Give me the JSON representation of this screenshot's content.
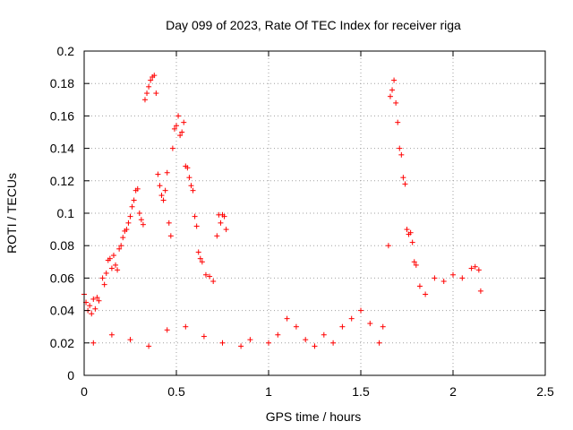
{
  "chart_data": {
    "type": "scatter",
    "title": "Day 099 of 2023, Rate Of TEC Index for receiver riga",
    "xlabel": "GPS time / hours",
    "ylabel": "ROTI / TECUs",
    "xlim": [
      0,
      2.5
    ],
    "ylim": [
      0,
      0.2
    ],
    "x_ticks": [
      "0",
      "0.5",
      "1",
      "1.5",
      "2",
      "2.5"
    ],
    "y_ticks": [
      "0",
      "0.02",
      "0.04",
      "0.06",
      "0.08",
      "0.1",
      "0.12",
      "0.14",
      "0.16",
      "0.18",
      "0.2"
    ],
    "grid": true,
    "marker": "+",
    "color": "#ff0000",
    "point_count_note": "",
    "series": [
      {
        "points": [
          [
            0.0,
            0.05
          ],
          [
            0.01,
            0.045
          ],
          [
            0.02,
            0.04
          ],
          [
            0.03,
            0.043
          ],
          [
            0.04,
            0.038
          ],
          [
            0.05,
            0.047
          ],
          [
            0.06,
            0.041
          ],
          [
            0.07,
            0.048
          ],
          [
            0.08,
            0.046
          ],
          [
            0.1,
            0.06
          ],
          [
            0.11,
            0.056
          ],
          [
            0.12,
            0.063
          ],
          [
            0.13,
            0.071
          ],
          [
            0.14,
            0.072
          ],
          [
            0.15,
            0.066
          ],
          [
            0.16,
            0.074
          ],
          [
            0.17,
            0.068
          ],
          [
            0.18,
            0.065
          ],
          [
            0.19,
            0.078
          ],
          [
            0.2,
            0.08
          ],
          [
            0.21,
            0.085
          ],
          [
            0.22,
            0.089
          ],
          [
            0.23,
            0.09
          ],
          [
            0.24,
            0.094
          ],
          [
            0.25,
            0.098
          ],
          [
            0.26,
            0.104
          ],
          [
            0.27,
            0.108
          ],
          [
            0.28,
            0.114
          ],
          [
            0.29,
            0.115
          ],
          [
            0.3,
            0.1
          ],
          [
            0.31,
            0.096
          ],
          [
            0.32,
            0.093
          ],
          [
            0.33,
            0.17
          ],
          [
            0.34,
            0.174
          ],
          [
            0.35,
            0.178
          ],
          [
            0.36,
            0.182
          ],
          [
            0.37,
            0.184
          ],
          [
            0.38,
            0.185
          ],
          [
            0.39,
            0.174
          ],
          [
            0.4,
            0.124
          ],
          [
            0.41,
            0.117
          ],
          [
            0.42,
            0.111
          ],
          [
            0.43,
            0.108
          ],
          [
            0.44,
            0.114
          ],
          [
            0.45,
            0.125
          ],
          [
            0.46,
            0.094
          ],
          [
            0.47,
            0.086
          ],
          [
            0.48,
            0.14
          ],
          [
            0.49,
            0.152
          ],
          [
            0.5,
            0.154
          ],
          [
            0.51,
            0.16
          ],
          [
            0.52,
            0.148
          ],
          [
            0.53,
            0.15
          ],
          [
            0.54,
            0.156
          ],
          [
            0.55,
            0.129
          ],
          [
            0.56,
            0.128
          ],
          [
            0.57,
            0.122
          ],
          [
            0.58,
            0.117
          ],
          [
            0.59,
            0.114
          ],
          [
            0.6,
            0.098
          ],
          [
            0.61,
            0.092
          ],
          [
            0.62,
            0.076
          ],
          [
            0.63,
            0.072
          ],
          [
            0.64,
            0.07
          ],
          [
            0.66,
            0.062
          ],
          [
            0.68,
            0.061
          ],
          [
            0.7,
            0.058
          ],
          [
            0.72,
            0.086
          ],
          [
            0.73,
            0.099
          ],
          [
            0.74,
            0.094
          ],
          [
            0.75,
            0.099
          ],
          [
            0.76,
            0.098
          ],
          [
            0.77,
            0.09
          ],
          [
            0.05,
            0.02
          ],
          [
            0.15,
            0.025
          ],
          [
            0.25,
            0.022
          ],
          [
            0.35,
            0.018
          ],
          [
            0.45,
            0.028
          ],
          [
            0.55,
            0.03
          ],
          [
            0.65,
            0.024
          ],
          [
            0.75,
            0.02
          ],
          [
            0.85,
            0.018
          ],
          [
            0.9,
            0.022
          ],
          [
            1.0,
            0.02
          ],
          [
            1.05,
            0.025
          ],
          [
            1.1,
            0.035
          ],
          [
            1.15,
            0.03
          ],
          [
            1.2,
            0.022
          ],
          [
            1.25,
            0.018
          ],
          [
            1.3,
            0.025
          ],
          [
            1.35,
            0.02
          ],
          [
            1.4,
            0.03
          ],
          [
            1.45,
            0.035
          ],
          [
            1.5,
            0.04
          ],
          [
            1.55,
            0.032
          ],
          [
            1.6,
            0.02
          ],
          [
            1.62,
            0.03
          ],
          [
            1.65,
            0.08
          ],
          [
            1.66,
            0.172
          ],
          [
            1.67,
            0.176
          ],
          [
            1.68,
            0.182
          ],
          [
            1.69,
            0.168
          ],
          [
            1.7,
            0.156
          ],
          [
            1.71,
            0.14
          ],
          [
            1.72,
            0.136
          ],
          [
            1.73,
            0.122
          ],
          [
            1.74,
            0.118
          ],
          [
            1.75,
            0.09
          ],
          [
            1.76,
            0.087
          ],
          [
            1.77,
            0.088
          ],
          [
            1.78,
            0.082
          ],
          [
            1.79,
            0.07
          ],
          [
            1.8,
            0.068
          ],
          [
            1.82,
            0.055
          ],
          [
            1.85,
            0.05
          ],
          [
            1.9,
            0.06
          ],
          [
            1.95,
            0.058
          ],
          [
            2.0,
            0.062
          ],
          [
            2.05,
            0.06
          ],
          [
            2.1,
            0.066
          ],
          [
            2.12,
            0.067
          ],
          [
            2.14,
            0.065
          ],
          [
            2.15,
            0.052
          ]
        ]
      }
    ]
  }
}
